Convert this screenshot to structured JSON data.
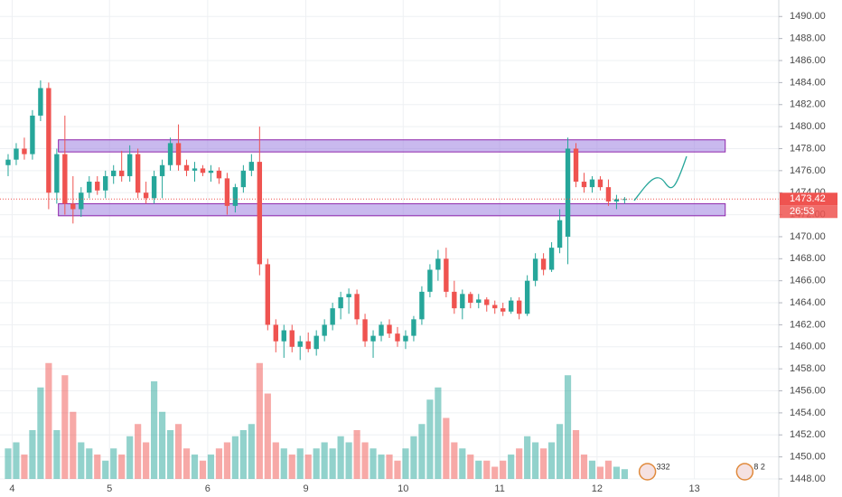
{
  "chart_data": {
    "type": "candlestick",
    "up_color": "#26a69a",
    "down_color": "#ef5350",
    "zone_color": "#9c7fe0",
    "ylim": [
      1448,
      1491.5
    ],
    "xlim": [
      -1,
      95
    ],
    "volume_lim": [
      0,
      100
    ],
    "yticks": [
      {
        "value": 1448,
        "label": "1448.00"
      },
      {
        "value": 1450,
        "label": "1450.00"
      },
      {
        "value": 1452,
        "label": "1452.00"
      },
      {
        "value": 1454,
        "label": "1454.00"
      },
      {
        "value": 1456,
        "label": "1456.00"
      },
      {
        "value": 1458,
        "label": "1458.00"
      },
      {
        "value": 1460,
        "label": "1460.00"
      },
      {
        "value": 1462,
        "label": "1462.00"
      },
      {
        "value": 1464,
        "label": "1464.00"
      },
      {
        "value": 1466,
        "label": "1466.00"
      },
      {
        "value": 1468,
        "label": "1468.00"
      },
      {
        "value": 1470,
        "label": "1470.00"
      },
      {
        "value": 1472,
        "label": "1472.00"
      },
      {
        "value": 1474,
        "label": "1474.00"
      },
      {
        "value": 1476,
        "label": "1476.00"
      },
      {
        "value": 1478,
        "label": "1478.00"
      },
      {
        "value": 1480,
        "label": "1480.00"
      },
      {
        "value": 1482,
        "label": "1482.00"
      },
      {
        "value": 1484,
        "label": "1484.00"
      },
      {
        "value": 1486,
        "label": "1486.00"
      },
      {
        "value": 1488,
        "label": "1488.00"
      },
      {
        "value": 1490,
        "label": "1490.00"
      }
    ],
    "xticks": [
      {
        "value": 0.5,
        "label": "4"
      },
      {
        "value": 12.5,
        "label": "5"
      },
      {
        "value": 24.6,
        "label": "6"
      },
      {
        "value": 36.7,
        "label": "9"
      },
      {
        "value": 48.7,
        "label": "10"
      },
      {
        "value": 60.6,
        "label": "11"
      },
      {
        "value": 72.6,
        "label": "12"
      },
      {
        "value": 84.6,
        "label": "13"
      }
    ],
    "open": [
      1476.5,
      1477.0,
      1478.0,
      1477.5,
      1481.0,
      1483.5,
      1474.0,
      1477.5,
      1473.0,
      1472.5,
      1474.0,
      1475.0,
      1474.2,
      1475.5,
      1476.0,
      1475.5,
      1477.5,
      1474.0,
      1473.5,
      1475.5,
      1476.5,
      1478.5,
      1476.5,
      1476.0,
      1476.2,
      1475.8,
      1476.0,
      1475.3,
      1472.8,
      1474.5,
      1476.0,
      1476.8,
      1467.5,
      1462.0,
      1460.5,
      1461.5,
      1460.0,
      1460.5,
      1459.8,
      1461.0,
      1462.0,
      1463.5,
      1464.5,
      1464.8,
      1462.5,
      1460.5,
      1461.0,
      1462.0,
      1461.2,
      1460.5,
      1461.0,
      1462.5,
      1465.0,
      1467.0,
      1468.0,
      1465.0,
      1463.5,
      1464.8,
      1464.0,
      1464.3,
      1463.8,
      1463.5,
      1463.2,
      1464.2,
      1463.0,
      1466.0,
      1468.0,
      1467.0,
      1469.0,
      1470.0,
      1478.0,
      1475.0,
      1474.5,
      1475.2,
      1474.5,
      1473.2,
      1473.4
    ],
    "high": [
      1477.5,
      1478.5,
      1479.0,
      1481.5,
      1484.2,
      1484.0,
      1478.0,
      1481.0,
      1475.5,
      1474.5,
      1475.5,
      1475.5,
      1476.0,
      1476.5,
      1477.8,
      1478.3,
      1478.0,
      1475.0,
      1476.0,
      1477.0,
      1479.0,
      1480.2,
      1477.0,
      1476.8,
      1476.5,
      1476.5,
      1476.3,
      1475.8,
      1474.8,
      1476.5,
      1477.5,
      1480.0,
      1468.0,
      1462.5,
      1462.0,
      1462.0,
      1461.0,
      1461.3,
      1461.5,
      1462.5,
      1464.0,
      1465.0,
      1465.3,
      1465.2,
      1463.0,
      1461.5,
      1462.3,
      1462.5,
      1461.8,
      1461.5,
      1462.8,
      1465.5,
      1467.5,
      1468.8,
      1469.0,
      1466.0,
      1465.2,
      1465.0,
      1464.8,
      1464.5,
      1464.2,
      1464.0,
      1464.5,
      1464.5,
      1466.5,
      1468.5,
      1468.5,
      1469.5,
      1472.5,
      1479.0,
      1478.5,
      1475.8,
      1475.5,
      1475.5,
      1475.2,
      1473.8,
      1473.6
    ],
    "low": [
      1475.5,
      1476.5,
      1477.0,
      1477.0,
      1480.5,
      1472.5,
      1473.0,
      1472.0,
      1471.2,
      1471.8,
      1473.5,
      1473.8,
      1473.5,
      1474.8,
      1475.0,
      1475.0,
      1473.5,
      1473.0,
      1473.0,
      1473.5,
      1476.0,
      1476.0,
      1475.5,
      1475.0,
      1475.5,
      1475.0,
      1474.8,
      1472.0,
      1472.2,
      1474.0,
      1475.5,
      1466.5,
      1461.5,
      1459.5,
      1459.0,
      1459.5,
      1458.8,
      1459.5,
      1459.2,
      1460.5,
      1461.5,
      1462.5,
      1463.0,
      1462.0,
      1460.0,
      1459.0,
      1460.5,
      1460.8,
      1460.0,
      1459.8,
      1460.5,
      1462.0,
      1464.5,
      1466.0,
      1464.5,
      1463.0,
      1462.5,
      1463.5,
      1463.5,
      1463.2,
      1463.0,
      1462.8,
      1463.0,
      1462.5,
      1462.8,
      1465.5,
      1466.5,
      1466.8,
      1468.5,
      1467.5,
      1474.5,
      1474.0,
      1474.0,
      1474.2,
      1472.8,
      1472.5,
      1473.0
    ],
    "close": [
      1477.0,
      1478.0,
      1477.5,
      1481.0,
      1483.5,
      1474.0,
      1477.5,
      1473.0,
      1472.5,
      1474.0,
      1475.0,
      1474.2,
      1475.5,
      1476.0,
      1475.5,
      1477.5,
      1474.0,
      1473.5,
      1475.5,
      1476.5,
      1478.5,
      1476.5,
      1476.0,
      1476.2,
      1475.8,
      1476.0,
      1475.3,
      1472.8,
      1474.5,
      1476.0,
      1476.8,
      1467.5,
      1462.0,
      1460.5,
      1461.5,
      1460.0,
      1460.5,
      1459.8,
      1461.0,
      1462.0,
      1463.5,
      1464.5,
      1464.8,
      1462.5,
      1460.5,
      1461.0,
      1462.0,
      1461.2,
      1460.5,
      1461.0,
      1462.5,
      1465.0,
      1467.0,
      1468.0,
      1465.0,
      1463.5,
      1464.8,
      1464.0,
      1464.3,
      1463.8,
      1463.5,
      1463.2,
      1464.2,
      1463.0,
      1466.0,
      1468.0,
      1467.0,
      1469.0,
      1471.5,
      1478.0,
      1475.0,
      1474.5,
      1475.2,
      1474.5,
      1473.2,
      1473.4,
      1473.42
    ],
    "volume": [
      25,
      30,
      20,
      40,
      75,
      95,
      40,
      85,
      55,
      30,
      25,
      20,
      15,
      25,
      20,
      35,
      45,
      30,
      80,
      55,
      40,
      45,
      25,
      20,
      15,
      20,
      25,
      30,
      35,
      40,
      45,
      95,
      70,
      30,
      25,
      20,
      25,
      20,
      25,
      30,
      25,
      35,
      30,
      40,
      30,
      25,
      20,
      20,
      15,
      25,
      35,
      45,
      65,
      75,
      50,
      30,
      25,
      20,
      15,
      15,
      10,
      15,
      20,
      25,
      35,
      30,
      25,
      30,
      45,
      85,
      40,
      20,
      15,
      10,
      15,
      10,
      8
    ],
    "zones": [
      {
        "top": 1478.8,
        "bottom": 1477.7,
        "start": 6.2,
        "end": 88.4
      },
      {
        "top": 1473.0,
        "bottom": 1471.9,
        "start": 6.2,
        "end": 88.4
      }
    ],
    "last_price": 1473.42,
    "countdown": "26:53",
    "events": [
      {
        "label": "332",
        "x": 79.7
      },
      {
        "label": "8 2",
        "x": 91.7
      }
    ]
  }
}
